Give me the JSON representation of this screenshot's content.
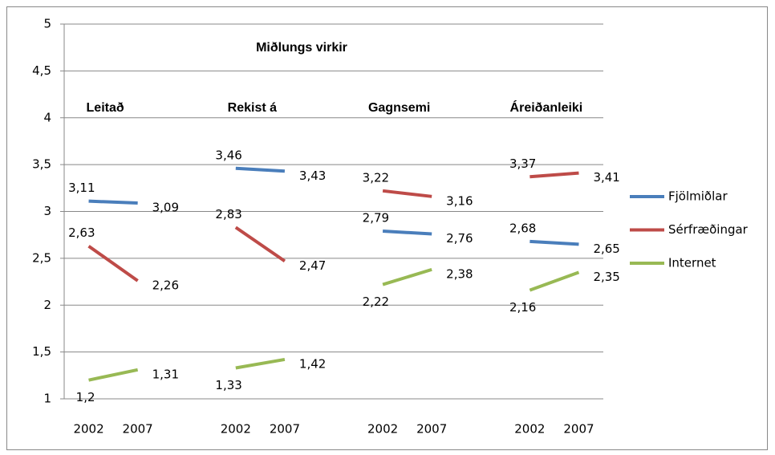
{
  "chart_data": {
    "type": "line",
    "title": "Miðlungs virkir",
    "group_labels": [
      "Leitað",
      "Rekist á",
      "Gagnsemi",
      "Áreiðanleiki"
    ],
    "categories": [
      "2002",
      "2007",
      null,
      "2002",
      "2007",
      null,
      "2002",
      "2007",
      null,
      "2002",
      "2007"
    ],
    "series": [
      {
        "name": "Fjölmiðlar",
        "color": "#4a7ebb",
        "values": [
          3.11,
          3.09,
          null,
          3.46,
          3.43,
          null,
          2.79,
          2.76,
          null,
          2.68,
          2.65
        ],
        "value_labels": [
          "3,11",
          "3,09",
          null,
          "3,46",
          "3,43",
          null,
          "2,79",
          "2,76",
          null,
          "2,68",
          "2,65"
        ]
      },
      {
        "name": "Sérfræðingar",
        "color": "#be4b48",
        "values": [
          2.63,
          2.26,
          null,
          2.83,
          2.47,
          null,
          3.22,
          3.16,
          null,
          3.37,
          3.41
        ],
        "value_labels": [
          "2,63",
          "2,26",
          null,
          "2,83",
          "2,47",
          null,
          "3,22",
          "3,16",
          null,
          "3,37",
          "3,41"
        ]
      },
      {
        "name": "Internet",
        "color": "#98b954",
        "values": [
          1.2,
          1.31,
          null,
          1.33,
          1.42,
          null,
          2.22,
          2.38,
          null,
          2.16,
          2.35
        ],
        "value_labels": [
          "1,2",
          "1,31",
          null,
          "1,33",
          "1,42",
          null,
          "2,22",
          "2,38",
          null,
          "2,16",
          "2,35"
        ]
      }
    ],
    "ylim": [
      1,
      5
    ],
    "yticks": [
      1,
      {
        "value": 1.5,
        "label": "1,5"
      },
      2,
      {
        "value": 2.5,
        "label": "2,5"
      },
      3,
      {
        "value": 3.5,
        "label": "3,5"
      },
      4,
      {
        "value": 4.5,
        "label": "4,5"
      },
      5
    ],
    "grid": true
  }
}
